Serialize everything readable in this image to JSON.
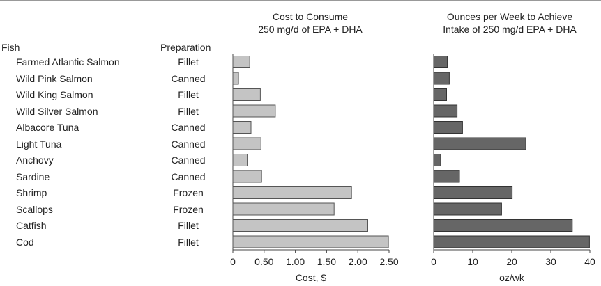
{
  "headers": {
    "fish": "Fish",
    "preparation": "Preparation"
  },
  "rows": [
    {
      "fish": "Farmed Atlantic Salmon",
      "preparation": "Fillet"
    },
    {
      "fish": "Wild Pink Salmon",
      "preparation": "Canned"
    },
    {
      "fish": "Wild King Salmon",
      "preparation": "Fillet"
    },
    {
      "fish": "Wild Silver Salmon",
      "preparation": "Fillet"
    },
    {
      "fish": "Albacore Tuna",
      "preparation": "Canned"
    },
    {
      "fish": "Light Tuna",
      "preparation": "Canned"
    },
    {
      "fish": "Anchovy",
      "preparation": "Canned"
    },
    {
      "fish": "Sardine",
      "preparation": "Canned"
    },
    {
      "fish": "Shrimp",
      "preparation": "Frozen"
    },
    {
      "fish": "Scallops",
      "preparation": "Frozen"
    },
    {
      "fish": "Catfish",
      "preparation": "Fillet"
    },
    {
      "fish": "Cod",
      "preparation": "Fillet"
    }
  ],
  "chart_data": [
    {
      "type": "bar",
      "orientation": "horizontal",
      "title_line1": "Cost to Consume",
      "title_line2": "250 mg/d of EPA + DHA",
      "xlabel": "Cost, $",
      "xlim": [
        0,
        2.5
      ],
      "ticks": [
        "0",
        "0.50",
        "1.00",
        "1.50",
        "2.00",
        "2.50"
      ],
      "tick_values": [
        0,
        0.5,
        1.0,
        1.5,
        2.0,
        2.5
      ],
      "bar_color": "#c4c4c4",
      "categories": [
        "Farmed Atlantic Salmon",
        "Wild Pink Salmon",
        "Wild King Salmon",
        "Wild Silver Salmon",
        "Albacore Tuna",
        "Light Tuna",
        "Anchovy",
        "Sardine",
        "Shrimp",
        "Scallops",
        "Catfish",
        "Cod"
      ],
      "values": [
        0.27,
        0.09,
        0.44,
        0.68,
        0.29,
        0.45,
        0.23,
        0.46,
        1.9,
        1.62,
        2.16,
        2.49
      ]
    },
    {
      "type": "bar",
      "orientation": "horizontal",
      "title_line1": "Ounces per Week to Achieve",
      "title_line2": "Intake of 250 mg/d EPA + DHA",
      "xlabel": "oz/wk",
      "xlim": [
        0,
        40
      ],
      "ticks": [
        "0",
        "10",
        "20",
        "30",
        "40"
      ],
      "tick_values": [
        0,
        10,
        20,
        30,
        40
      ],
      "bar_color": "#666666",
      "categories": [
        "Farmed Atlantic Salmon",
        "Wild Pink Salmon",
        "Wild King Salmon",
        "Wild Silver Salmon",
        "Albacore Tuna",
        "Light Tuna",
        "Anchovy",
        "Sardine",
        "Shrimp",
        "Scallops",
        "Catfish",
        "Cod"
      ],
      "values": [
        3.5,
        4.0,
        3.3,
        6.0,
        7.4,
        23.6,
        1.8,
        6.6,
        20.1,
        17.4,
        35.5,
        39.9
      ]
    }
  ]
}
